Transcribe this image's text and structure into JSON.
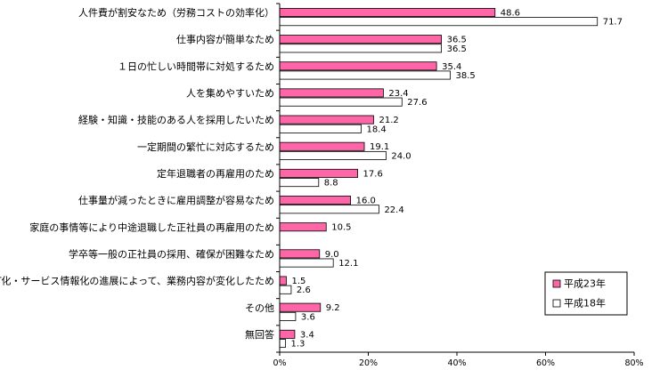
{
  "chart_data": {
    "type": "bar",
    "orientation": "horizontal",
    "categories": [
      "人件費が割安なため（労務コストの効率化）",
      "仕事内容が簡単なため",
      "１日の忙しい時間帯に対処するため",
      "人を集めやすいため",
      "経験・知識・技能のある人を採用したいため",
      "一定期間の繁忙に対応するため",
      "定年退職者の再雇用のため",
      "仕事量が減ったときに雇用調整が容易なため",
      "家庭の事情等により中途退職した正社員の再雇用のため",
      "学卒等一般の正社員の採用、確保が困難なため",
      "IT化・サービス情報化の進展によって、業務内容が変化したため",
      "その他",
      "無回答"
    ],
    "series": [
      {
        "name": "平成23年",
        "color": "#ff66a8",
        "values": [
          48.6,
          36.5,
          35.4,
          23.4,
          21.2,
          19.1,
          17.6,
          16.0,
          10.5,
          9.0,
          1.5,
          9.2,
          3.4
        ],
        "labels": [
          "48.6",
          "36.5",
          "35.4",
          "23.4",
          "21.2",
          "19.1",
          "17.6",
          "16.0",
          "10.5",
          "9.0",
          "1.5",
          "9.2",
          "3.4"
        ]
      },
      {
        "name": "平成18年",
        "color": "#ffffff",
        "values": [
          71.7,
          36.5,
          38.5,
          27.6,
          18.4,
          24.0,
          8.8,
          22.4,
          null,
          12.1,
          2.6,
          3.6,
          1.3
        ],
        "labels": [
          "71.7",
          "36.5",
          "38.5",
          "27.6",
          "18.4",
          "24.0",
          "8.8",
          "22.4",
          "",
          "12.1",
          "2.6",
          "3.6",
          "1.3"
        ]
      }
    ],
    "x_ticks": [
      "0%",
      "20%",
      "40%",
      "60%",
      "80%"
    ],
    "xlim": [
      0,
      80
    ],
    "legend_position": "right",
    "grid": false
  }
}
